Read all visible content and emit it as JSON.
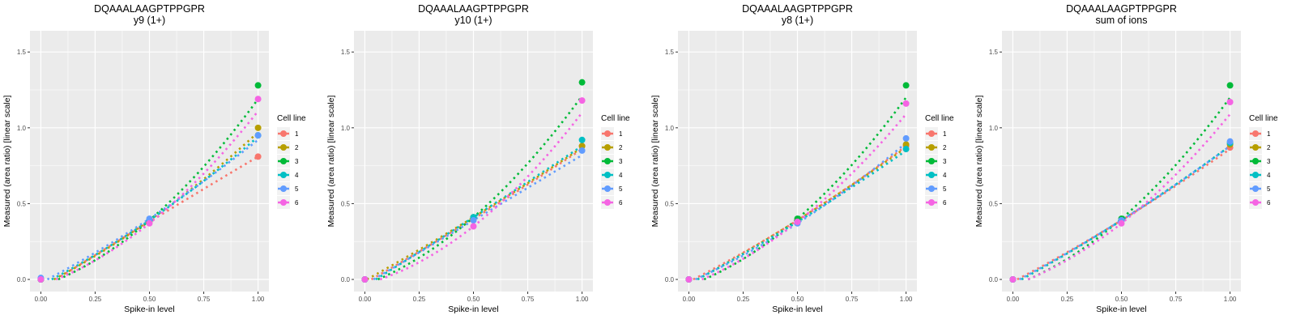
{
  "colors": {
    "1": "#F8766D",
    "2": "#B79F00",
    "3": "#00BA38",
    "4": "#00BFC4",
    "5": "#619CFF",
    "6": "#F564E3",
    "panel_bg": "#EBEBEB",
    "grid": "#FFFFFF",
    "text": "#000000",
    "tick_text": "#4D4D4D"
  },
  "chart_data": [
    {
      "type": "line",
      "title": "DQAAALAAGPTPPGPR",
      "subtitle": "y9 (1+)",
      "xlabel": "Spike-in level",
      "ylabel": "Measured (area ratio) [linear scale]",
      "xlim": [
        -0.05,
        1.05
      ],
      "ylim": [
        -0.08,
        1.64
      ],
      "xticks": [
        "0.00",
        "0.25",
        "0.50",
        "0.75",
        "1.00"
      ],
      "xtick_values": [
        0,
        0.25,
        0.5,
        0.75,
        1.0
      ],
      "yticks": [
        "0.0",
        "0.5",
        "1.0",
        "1.5"
      ],
      "ytick_values": [
        0,
        0.5,
        1.0,
        1.5
      ],
      "grid": true,
      "legend": {
        "title": "Cell line",
        "position": "right",
        "entries": [
          "1",
          "2",
          "3",
          "4",
          "5",
          "6"
        ]
      },
      "x": [
        0,
        0.5,
        1.0
      ],
      "series": [
        {
          "name": "1",
          "values": [
            0.0,
            0.38,
            0.81
          ],
          "fit_start": 0.07,
          "fit_end": 0.81
        },
        {
          "name": "2",
          "values": [
            0.0,
            0.39,
            1.0
          ],
          "fit_start": 0.06,
          "fit_end": 0.97
        },
        {
          "name": "3",
          "values": [
            0.0,
            0.39,
            1.28
          ],
          "fit_start": 0.08,
          "fit_end": 1.19
        },
        {
          "name": "4",
          "values": [
            0.0,
            0.39,
            0.95
          ],
          "fit_start": 0.05,
          "fit_end": 0.94
        },
        {
          "name": "5",
          "values": [
            0.01,
            0.4,
            0.95
          ],
          "fit_start": 0.03,
          "fit_end": 0.92
        },
        {
          "name": "6",
          "values": [
            0.0,
            0.37,
            1.19
          ],
          "fit_start": 0.07,
          "fit_end": 1.11
        }
      ]
    },
    {
      "type": "line",
      "title": "DQAAALAAGPTPPGPR",
      "subtitle": "y10 (1+)",
      "xlabel": "Spike-in level",
      "ylabel": "Measured (area ratio) [linear scale]",
      "xlim": [
        -0.05,
        1.05
      ],
      "ylim": [
        -0.08,
        1.64
      ],
      "xticks": [
        "0.00",
        "0.25",
        "0.50",
        "0.75",
        "1.00"
      ],
      "xtick_values": [
        0,
        0.25,
        0.5,
        0.75,
        1.0
      ],
      "yticks": [
        "0.0",
        "0.5",
        "1.0",
        "1.5"
      ],
      "ytick_values": [
        0,
        0.5,
        1.0,
        1.5
      ],
      "grid": true,
      "legend": {
        "title": "Cell line",
        "position": "right",
        "entries": [
          "1",
          "2",
          "3",
          "4",
          "5",
          "6"
        ]
      },
      "x": [
        0,
        0.5,
        1.0
      ],
      "series": [
        {
          "name": "1",
          "values": [
            0.0,
            0.4,
            0.88
          ],
          "fit_start": 0.03,
          "fit_end": 0.86
        },
        {
          "name": "2",
          "values": [
            0.0,
            0.41,
            0.88
          ],
          "fit_start": 0.01,
          "fit_end": 0.87
        },
        {
          "name": "3",
          "values": [
            0.0,
            0.41,
            1.3
          ],
          "fit_start": 0.06,
          "fit_end": 1.21
        },
        {
          "name": "4",
          "values": [
            0.0,
            0.41,
            0.92
          ],
          "fit_start": 0.05,
          "fit_end": 0.88
        },
        {
          "name": "5",
          "values": [
            0.0,
            0.39,
            0.85
          ],
          "fit_start": 0.04,
          "fit_end": 0.82
        },
        {
          "name": "6",
          "values": [
            0.0,
            0.35,
            1.18
          ],
          "fit_start": 0.07,
          "fit_end": 1.1
        }
      ]
    },
    {
      "type": "line",
      "title": "DQAAALAAGPTPPGPR",
      "subtitle": "y8 (1+)",
      "xlabel": "Spike-in level",
      "ylabel": "Measured (area ratio) [linear scale]",
      "xlim": [
        -0.05,
        1.05
      ],
      "ylim": [
        -0.08,
        1.64
      ],
      "xticks": [
        "0.00",
        "0.25",
        "0.50",
        "0.75",
        "1.00"
      ],
      "xtick_values": [
        0,
        0.25,
        0.5,
        0.75,
        1.0
      ],
      "yticks": [
        "0.0",
        "0.5",
        "1.0",
        "1.5"
      ],
      "ytick_values": [
        0,
        0.5,
        1.0,
        1.5
      ],
      "grid": true,
      "legend": {
        "title": "Cell line",
        "position": "right",
        "entries": [
          "1",
          "2",
          "3",
          "4",
          "5",
          "6"
        ]
      },
      "x": [
        0,
        0.5,
        1.0
      ],
      "series": [
        {
          "name": "1",
          "values": [
            0.0,
            0.39,
            0.88
          ],
          "fit_start": 0.02,
          "fit_end": 0.88
        },
        {
          "name": "2",
          "values": [
            0.0,
            0.39,
            0.89
          ],
          "fit_start": 0.04,
          "fit_end": 0.87
        },
        {
          "name": "3",
          "values": [
            0.0,
            0.4,
            1.28
          ],
          "fit_start": 0.07,
          "fit_end": 1.2
        },
        {
          "name": "4",
          "values": [
            0.0,
            0.38,
            0.86
          ],
          "fit_start": 0.04,
          "fit_end": 0.85
        },
        {
          "name": "5",
          "values": [
            0.0,
            0.37,
            0.93
          ],
          "fit_start": 0.03,
          "fit_end": 0.9
        },
        {
          "name": "6",
          "values": [
            0.0,
            0.38,
            1.16
          ],
          "fit_start": 0.06,
          "fit_end": 1.09
        }
      ]
    },
    {
      "type": "line",
      "title": "DQAAALAAGPTPPGPR",
      "subtitle": "sum of ions",
      "xlabel": "Spike-in level",
      "ylabel": "Measured (area ratio) [linear scale]",
      "xlim": [
        -0.05,
        1.05
      ],
      "ylim": [
        -0.08,
        1.64
      ],
      "xticks": [
        "0.00",
        "0.25",
        "0.50",
        "0.75",
        "1.00"
      ],
      "xtick_values": [
        0,
        0.25,
        0.5,
        0.75,
        1.0
      ],
      "yticks": [
        "0.0",
        "0.5",
        "1.0",
        "1.5"
      ],
      "ytick_values": [
        0,
        0.5,
        1.0,
        1.5
      ],
      "grid": true,
      "legend": {
        "title": "Cell line",
        "position": "right",
        "entries": [
          "1",
          "2",
          "3",
          "4",
          "5",
          "6"
        ]
      },
      "x": [
        0,
        0.5,
        1.0
      ],
      "series": [
        {
          "name": "1",
          "values": [
            0.0,
            0.39,
            0.87
          ],
          "fit_start": 0.02,
          "fit_end": 0.86
        },
        {
          "name": "2",
          "values": [
            0.0,
            0.39,
            0.89
          ],
          "fit_start": 0.04,
          "fit_end": 0.88
        },
        {
          "name": "3",
          "values": [
            0.0,
            0.4,
            1.28
          ],
          "fit_start": 0.07,
          "fit_end": 1.2
        },
        {
          "name": "4",
          "values": [
            0.0,
            0.39,
            0.9
          ],
          "fit_start": 0.04,
          "fit_end": 0.88
        },
        {
          "name": "5",
          "values": [
            0.0,
            0.39,
            0.91
          ],
          "fit_start": 0.03,
          "fit_end": 0.88
        },
        {
          "name": "6",
          "values": [
            0.0,
            0.37,
            1.17
          ],
          "fit_start": 0.07,
          "fit_end": 1.09
        }
      ]
    }
  ]
}
